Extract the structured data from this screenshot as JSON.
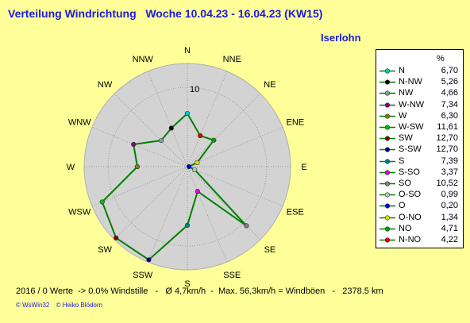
{
  "header": {
    "title": "Verteilung Windrichtung   Woche 10.04.23 - 16.04.23 (KW15)",
    "station": "Iserlohn"
  },
  "chart_data": {
    "type": "radar",
    "directions": [
      "N",
      "NNE",
      "NE",
      "ENE",
      "E",
      "ESE",
      "SE",
      "SSE",
      "S",
      "SSW",
      "SW",
      "WSW",
      "W",
      "WNW",
      "NW",
      "NNW"
    ],
    "values": [
      6.7,
      4.22,
      4.71,
      1.34,
      0.2,
      0.99,
      10.52,
      3.37,
      7.39,
      12.7,
      12.7,
      11.61,
      6.3,
      7.34,
      4.66,
      5.26
    ],
    "radial_max": 13,
    "radial_tick": 10,
    "radial_tick_label": "10",
    "line_color": "#008000",
    "disk_color": "#d3d3d3",
    "unit": "%"
  },
  "legend": {
    "unit": "%",
    "items": [
      {
        "label": "N",
        "value": "6,70",
        "color": "#00c8c8"
      },
      {
        "label": "N-NW",
        "value": "5,26",
        "color": "#000000"
      },
      {
        "label": "NW",
        "value": "4,66",
        "color": "#7f9f9f"
      },
      {
        "label": "W-NW",
        "value": "7,34",
        "color": "#800080"
      },
      {
        "label": "W",
        "value": "6,30",
        "color": "#808000"
      },
      {
        "label": "W-SW",
        "value": "11,61",
        "color": "#00c000"
      },
      {
        "label": "SW",
        "value": "12,70",
        "color": "#800000"
      },
      {
        "label": "S-SW",
        "value": "12,70",
        "color": "#000080"
      },
      {
        "label": "S",
        "value": "7,39",
        "color": "#008080"
      },
      {
        "label": "S-SO",
        "value": "3,37",
        "color": "#e000e0"
      },
      {
        "label": "SO",
        "value": "10,52",
        "color": "#808080"
      },
      {
        "label": "O-SO",
        "value": "0,99",
        "color": "#c0c0c0"
      },
      {
        "label": "O",
        "value": "0,20",
        "color": "#0000e0"
      },
      {
        "label": "O-NO",
        "value": "1,34",
        "color": "#e0e000"
      },
      {
        "label": "NO",
        "value": "4,71",
        "color": "#00a000"
      },
      {
        "label": "N-NO",
        "value": "4,22",
        "color": "#e00000"
      }
    ]
  },
  "footer": {
    "stats": "2016 / 0 Werte  -> 0.0% Windstille   -   Ø 4,7km/h  -  Max. 56,3km/h = Windböen   -   2378.5 km",
    "credit_1": "© WsWin32",
    "credit_2": "© Heiko Blödorn"
  }
}
